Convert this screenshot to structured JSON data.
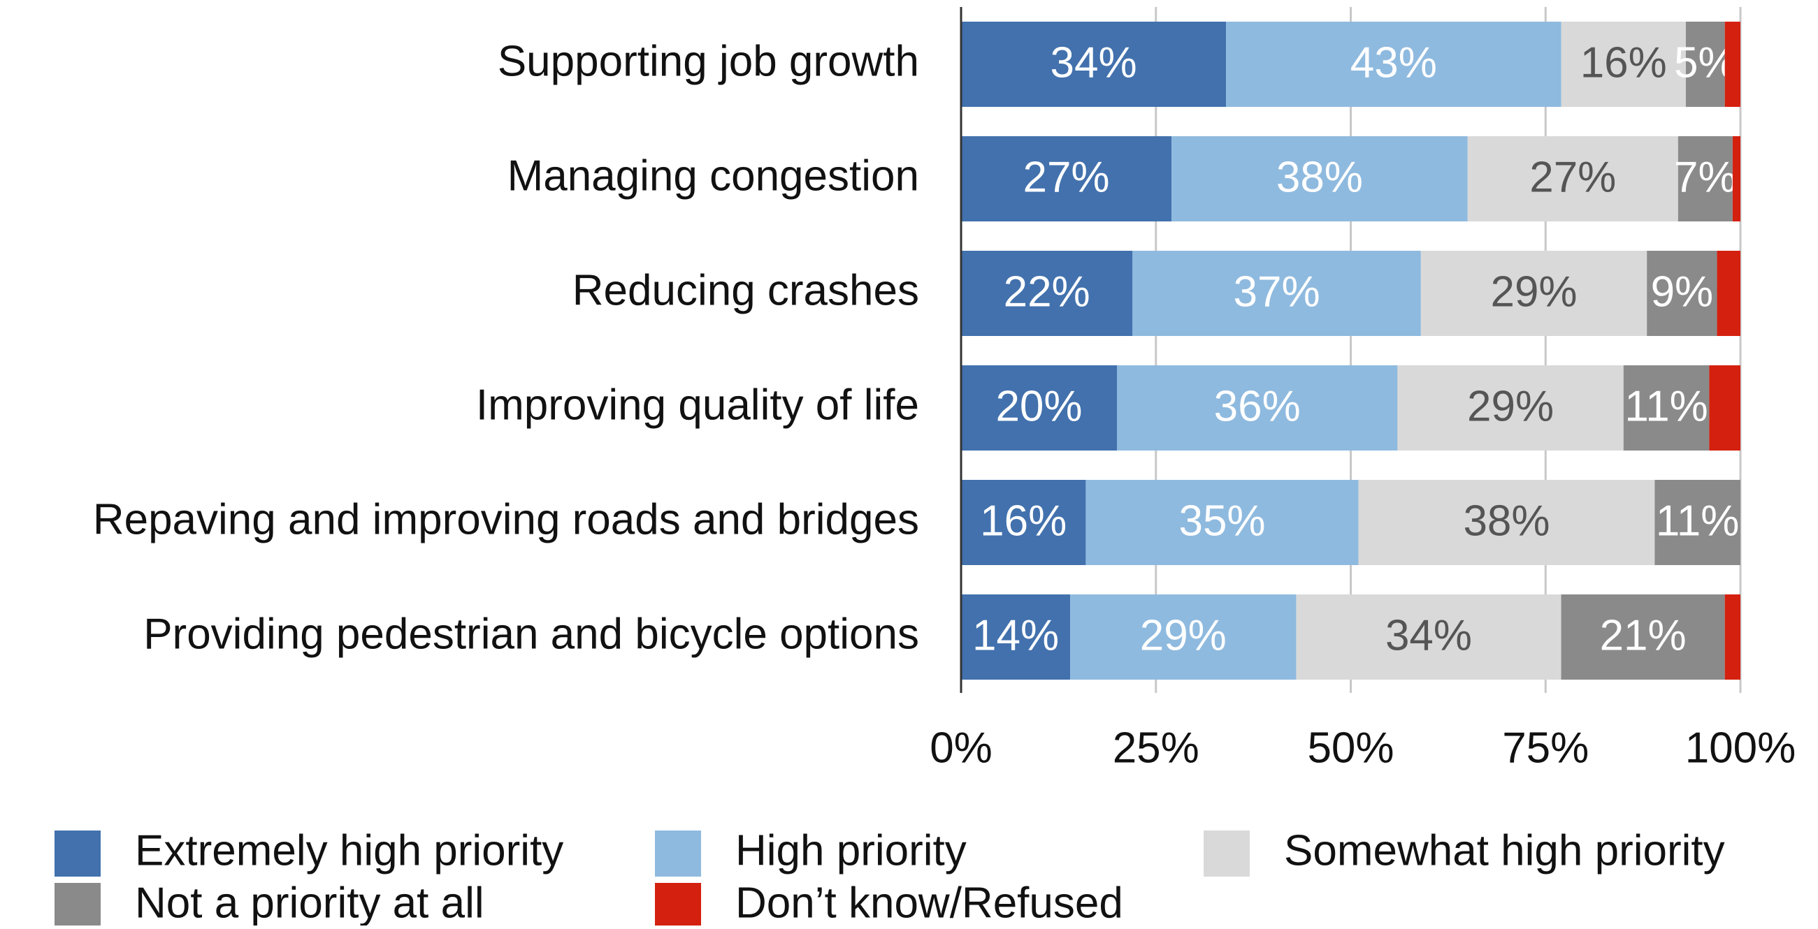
{
  "chart_data": {
    "type": "stacked_bar_horizontal",
    "categories": [
      "Supporting job growth",
      "Managing congestion",
      "Reducing crashes",
      "Improving quality of  life",
      "Repaving and improving roads and bridges",
      "Providing pedestrian and bicycle options"
    ],
    "series": [
      {
        "name": "Extremely high priority",
        "color": "#4271ad",
        "values": [
          34,
          27,
          22,
          20,
          16,
          14
        ],
        "value_labels": [
          "34%",
          "27%",
          "22%",
          "20%",
          "16%",
          "14%"
        ]
      },
      {
        "name": "High priority",
        "color": "#8fbadf",
        "values": [
          43,
          38,
          37,
          36,
          35,
          29
        ],
        "value_labels": [
          "43%",
          "38%",
          "37%",
          "36%",
          "35%",
          "29%"
        ]
      },
      {
        "name": "Somewhat high priority",
        "color": "#d9d9d9",
        "values": [
          16,
          27,
          29,
          29,
          38,
          34
        ],
        "value_labels": [
          "16%",
          "27%",
          "29%",
          "29%",
          "38%",
          "34%"
        ]
      },
      {
        "name": "Not a priority at all",
        "color": "#8a8a8a",
        "values": [
          5,
          7,
          9,
          11,
          11,
          21
        ],
        "value_labels": [
          "5%",
          "7%",
          "9%",
          "11%",
          "11%",
          "21%"
        ]
      },
      {
        "name": "Don’t know/Refused",
        "color": "#d4200f",
        "values": [
          2,
          1,
          3,
          4,
          0,
          2
        ]
      }
    ],
    "xlim": [
      0,
      100
    ],
    "xticks": [
      {
        "value": 0,
        "label": "0%"
      },
      {
        "value": 25,
        "label": "25%"
      },
      {
        "value": 50,
        "label": "50%"
      },
      {
        "value": 75,
        "label": "75%"
      },
      {
        "value": 100,
        "label": "100%"
      }
    ],
    "grid": true
  }
}
